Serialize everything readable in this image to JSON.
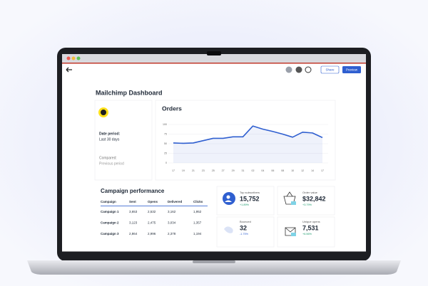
{
  "header": {
    "buttons": [
      "Share",
      "Preview"
    ]
  },
  "title": "Mailchimp Dashboard",
  "period_card": {
    "date_label": "Date period:",
    "date_value": "Last 30 days",
    "compared_label": "Compared:",
    "compared_value": "Previous period"
  },
  "chart_data": {
    "type": "line",
    "title": "Orders",
    "categories": [
      "17",
      "19",
      "21",
      "23",
      "25",
      "27",
      "29",
      "31",
      "02",
      "04",
      "06",
      "08",
      "10",
      "12",
      "14",
      "17"
    ],
    "values": [
      52,
      51,
      52,
      58,
      64,
      64,
      68,
      68,
      96,
      88,
      82,
      75,
      67,
      80,
      78,
      66
    ],
    "color": "#2f5fd0",
    "ylim": [
      0,
      100
    ],
    "yticks": [
      0,
      25,
      50,
      75,
      100
    ],
    "grid": true
  },
  "table": {
    "title": "Campaign performance",
    "header": [
      "Campaign",
      "Sent",
      "Opens",
      "Delivered",
      "Clicks"
    ],
    "rows": [
      [
        "Campaign 1",
        "3,653",
        "2,532",
        "3,162",
        "1,952"
      ],
      [
        "Campaign 2",
        "3,123",
        "2,475",
        "3,034",
        "1,357"
      ],
      [
        "Campaign 3",
        "2,864",
        "2,996",
        "2,378",
        "1,194"
      ]
    ]
  },
  "stats": [
    {
      "label": "Top subscribers",
      "value": "15,752",
      "change": "+1.89%"
    },
    {
      "label": "Order value",
      "value": "$32,842",
      "change": "+3.79%"
    },
    {
      "label": "Bounced",
      "value": "32",
      "change": "-1.75%"
    },
    {
      "label": "Unique opens",
      "value": "7,531",
      "change": "+6.56%"
    }
  ]
}
